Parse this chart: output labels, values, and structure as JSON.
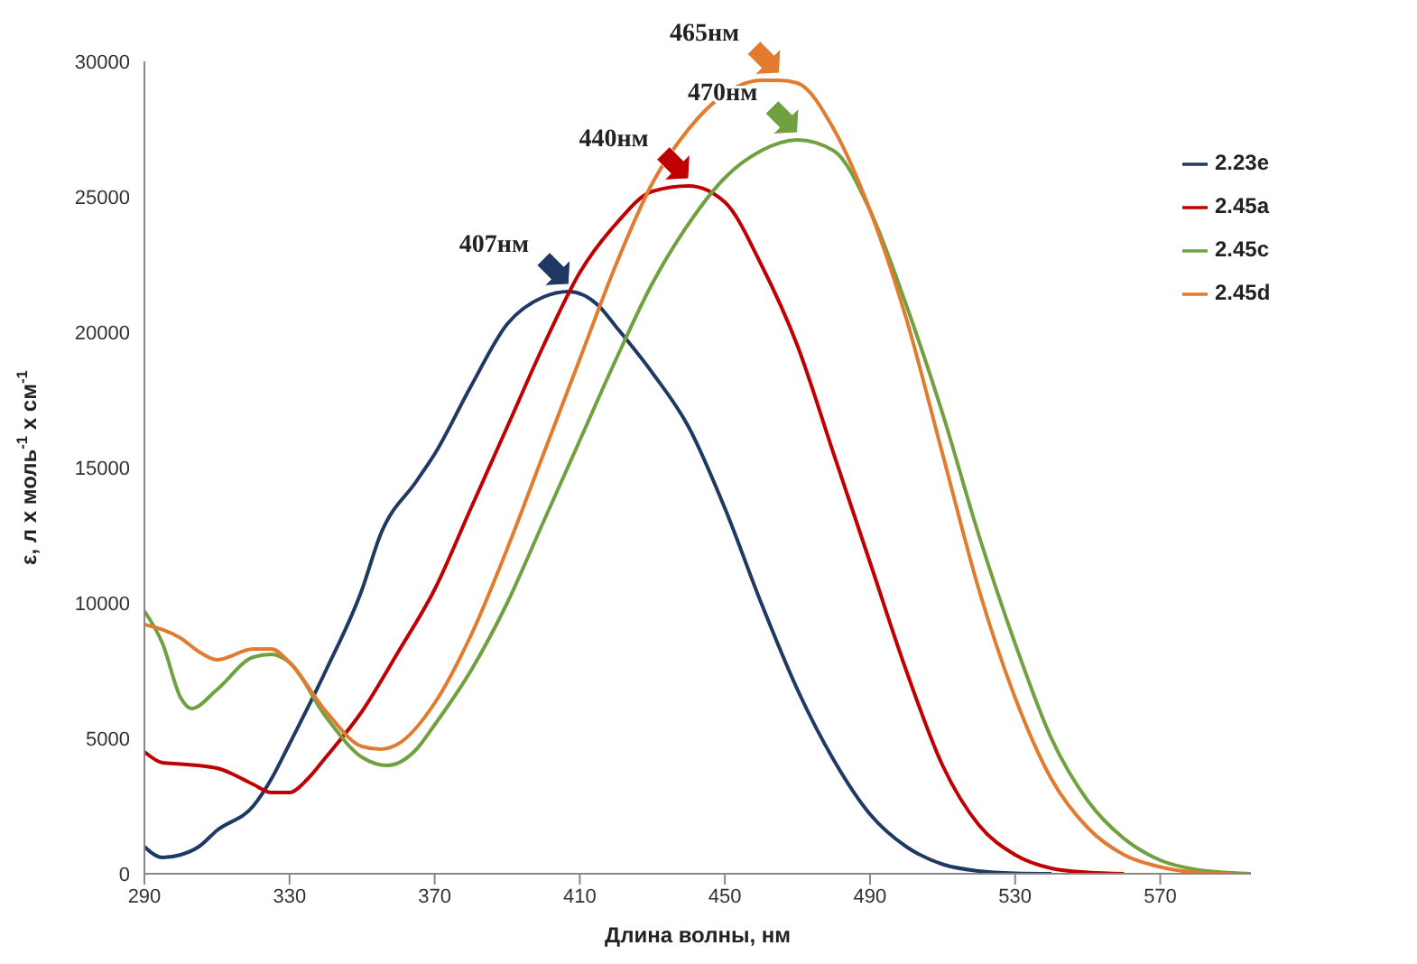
{
  "chart_data": {
    "type": "line",
    "xlabel": "Длина волны, нм",
    "ylabel": "ε, л x моль$^{-1}$ x см$^{-1}$",
    "xlim": [
      290,
      595
    ],
    "xticks": [
      290,
      330,
      370,
      410,
      450,
      490,
      530,
      570
    ],
    "ylim": [
      0,
      30000
    ],
    "yticks": [
      0,
      5000,
      10000,
      15000,
      20000,
      25000,
      30000
    ],
    "grid": false,
    "legend": "top right",
    "marker": "none",
    "line_style": "solid",
    "series": [
      {
        "name": "2.23e",
        "color": "#203864",
        "x": [
          290,
          295,
          300,
          305,
          310,
          320,
          325,
          330,
          340,
          350,
          355,
          365,
          370,
          380,
          390,
          400,
          407,
          415,
          420,
          430,
          440,
          450,
          460,
          470,
          480,
          490,
          500,
          510,
          520,
          530,
          540
        ],
        "values": [
          1000,
          600,
          700,
          1000,
          1600,
          2500,
          3500,
          4800,
          7500,
          10500,
          12500,
          14500,
          15500,
          18000,
          20300,
          21300,
          21500,
          21000,
          20200,
          18500,
          16500,
          13500,
          10000,
          6800,
          4200,
          2200,
          1000,
          350,
          100,
          20,
          0
        ]
      },
      {
        "name": "2.45a",
        "color": "#c00000",
        "x": [
          290,
          295,
          300,
          310,
          320,
          325,
          330,
          335,
          340,
          350,
          360,
          370,
          380,
          390,
          400,
          410,
          420,
          430,
          440,
          450,
          460,
          470,
          480,
          490,
          500,
          510,
          520,
          530,
          540,
          550,
          560
        ],
        "values": [
          4500,
          4100,
          4050,
          3900,
          3300,
          3000,
          3000,
          3500,
          4300,
          6000,
          8200,
          10500,
          13500,
          16500,
          19500,
          22200,
          24000,
          25200,
          25400,
          24800,
          22500,
          19500,
          15500,
          11500,
          7500,
          4000,
          1800,
          700,
          200,
          50,
          0
        ]
      },
      {
        "name": "2.45c",
        "color": "#70a040",
        "x": [
          290,
          295,
          300,
          303,
          310,
          320,
          325,
          330,
          340,
          350,
          357,
          365,
          370,
          380,
          390,
          400,
          410,
          420,
          430,
          440,
          450,
          460,
          470,
          480,
          490,
          500,
          510,
          520,
          530,
          540,
          550,
          560,
          570,
          580,
          590,
          595
        ],
        "values": [
          9700,
          8500,
          6500,
          6100,
          6800,
          8000,
          8100,
          7800,
          5800,
          4300,
          4000,
          4600,
          5500,
          7500,
          10000,
          13000,
          16000,
          19000,
          21800,
          24000,
          25700,
          26700,
          27100,
          26700,
          24500,
          21000,
          17000,
          12500,
          8500,
          5000,
          2700,
          1300,
          500,
          150,
          30,
          0
        ]
      },
      {
        "name": "2.45d",
        "color": "#e07b30",
        "x": [
          290,
          300,
          305,
          310,
          320,
          325,
          330,
          340,
          350,
          355,
          360,
          370,
          380,
          390,
          400,
          410,
          420,
          430,
          440,
          450,
          460,
          465,
          470,
          480,
          490,
          500,
          510,
          520,
          530,
          540,
          550,
          560,
          570,
          580,
          590
        ],
        "values": [
          9200,
          8700,
          8200,
          7900,
          8300,
          8300,
          7800,
          6000,
          4700,
          4600,
          4800,
          6300,
          8800,
          12000,
          15500,
          19000,
          22500,
          25500,
          27500,
          28800,
          29300,
          29300,
          29200,
          27500,
          24500,
          20500,
          15500,
          10500,
          6500,
          3500,
          1700,
          700,
          250,
          50,
          0
        ]
      }
    ],
    "annotations": [
      {
        "text": "407нм",
        "x": 407,
        "y": 21500
      },
      {
        "text": "440нм",
        "x": 440,
        "y": 25400
      },
      {
        "text": "470нм",
        "x": 470,
        "y": 27100
      },
      {
        "text": "465нм",
        "x": 465,
        "y": 29300
      }
    ]
  }
}
